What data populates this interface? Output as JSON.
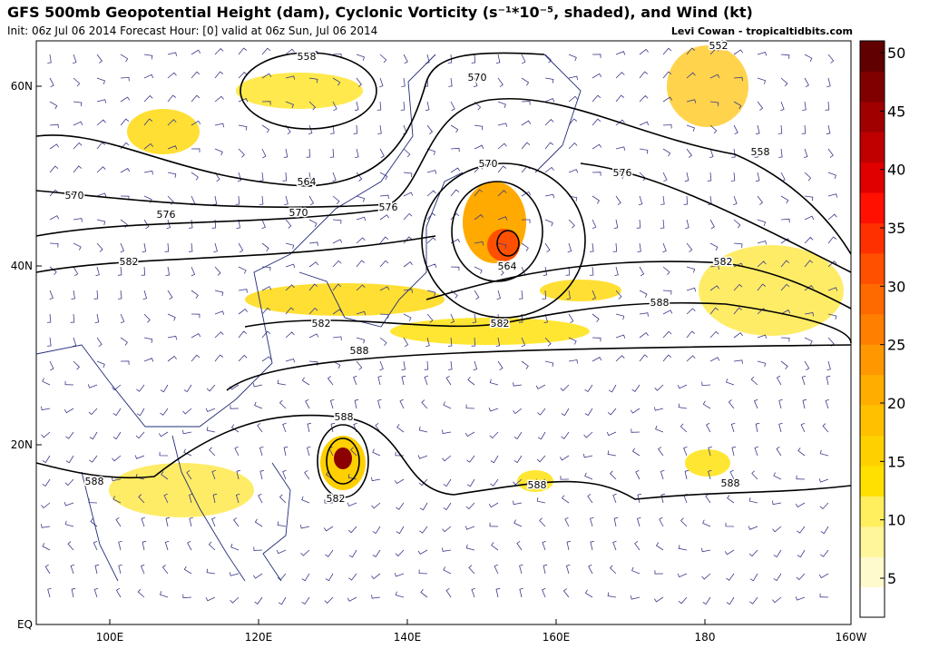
{
  "header": {
    "title": "GFS 500mb Geopotential Height (dam), Cyclonic Vorticity (s⁻¹*10⁻⁵, shaded), and Wind (kt)",
    "subtitle": "Init: 06z Jul 06 2014 Forecast Hour: [0] valid at 06z Sun, Jul 06 2014",
    "credit": "Levi Cowan - tropicaltidbits.com"
  },
  "map": {
    "lat_labels": [
      "60N",
      "40N",
      "20N",
      "EQ"
    ],
    "lon_labels": [
      "100E",
      "120E",
      "140E",
      "160E",
      "180",
      "160W"
    ],
    "contour_labels": [
      "558",
      "552",
      "570",
      "570",
      "564",
      "570",
      "576",
      "576",
      "570",
      "576",
      "564",
      "558",
      "582",
      "582",
      "588",
      "582",
      "582",
      "588",
      "588",
      "588",
      "582",
      "588",
      "588"
    ]
  },
  "colorbar": {
    "ticks": [
      5,
      10,
      15,
      20,
      25,
      30,
      35,
      40,
      45,
      50
    ]
  }
}
